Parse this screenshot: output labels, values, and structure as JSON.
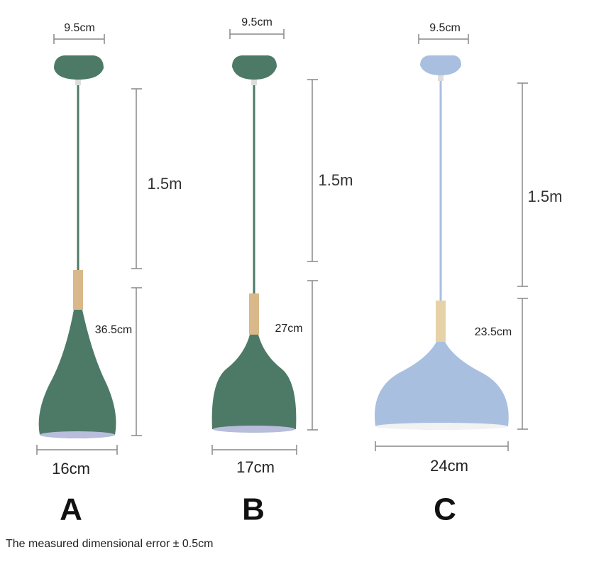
{
  "lamps": [
    {
      "label": "A",
      "canopy_width": "9.5cm",
      "cord_length": "1.5m",
      "shade_height": "36.5cm",
      "shade_width": "16cm"
    },
    {
      "label": "B",
      "canopy_width": "9.5cm",
      "cord_length": "1.5m",
      "shade_height": "27cm",
      "shade_width": "17cm"
    },
    {
      "label": "C",
      "canopy_width": "9.5cm",
      "cord_length": "1.5m",
      "shade_height": "23.5cm",
      "shade_width": "24cm"
    }
  ],
  "note": "The measured dimensional error ± 0.5cm"
}
